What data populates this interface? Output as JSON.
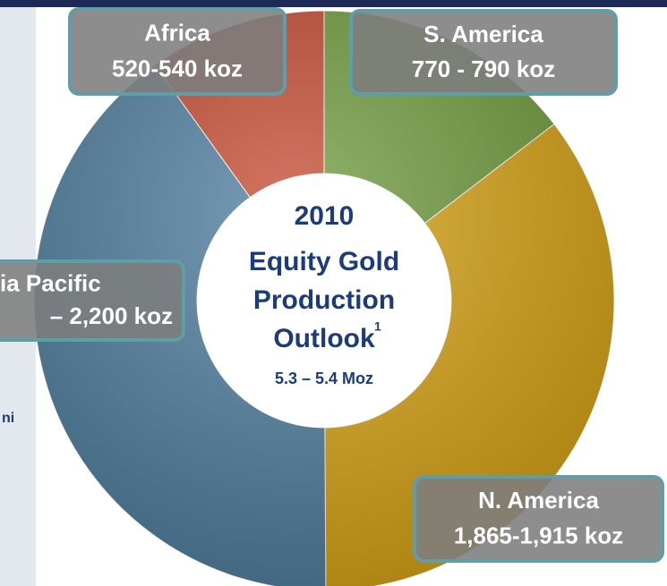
{
  "chart_data": {
    "type": "pie",
    "donut": true,
    "categories": [
      "Africa",
      "S. America",
      "N. America",
      "ia Pacific"
    ],
    "values": [
      530,
      780,
      1890,
      2150
    ],
    "value_labels": [
      "520-540 koz",
      "770 - 790 koz",
      "1,865-1,915 koz",
      "– 2,200 koz"
    ],
    "colors": [
      "#c54a30",
      "#6f9b3d",
      "#d8a414",
      "#4f7e9f"
    ],
    "center_title": [
      "2010",
      "Equity Gold",
      "Production",
      "Outlook"
    ],
    "center_footnote": "1",
    "center_subtitle": "5.3 – 5.4 Moz",
    "annotations": [
      "ni"
    ]
  }
}
